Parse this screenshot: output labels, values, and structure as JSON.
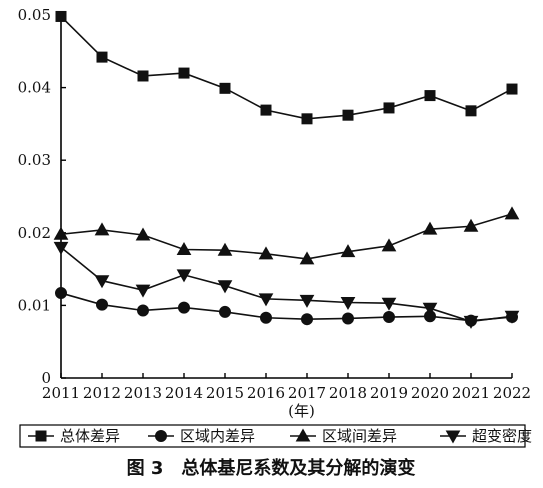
{
  "chart_data": {
    "type": "line",
    "title": "",
    "xlabel": "(年)",
    "ylabel": "",
    "x": [
      2011,
      2012,
      2013,
      2014,
      2015,
      2016,
      2017,
      2018,
      2019,
      2020,
      2021,
      2022
    ],
    "y_ticks": [
      "0",
      "0.01",
      "0.02",
      "0.03",
      "0.04",
      "0.05"
    ],
    "ylim": [
      0,
      0.05
    ],
    "grid": false,
    "legend_position": "bottom",
    "series": [
      {
        "name": "总体差异",
        "marker": "square",
        "values": [
          0.0498,
          0.0442,
          0.0416,
          0.042,
          0.0399,
          0.0369,
          0.0357,
          0.0362,
          0.0372,
          0.0389,
          0.0368,
          0.0398
        ]
      },
      {
        "name": "区域内差异",
        "marker": "circle",
        "values": [
          0.0117,
          0.0101,
          0.0093,
          0.0097,
          0.0091,
          0.0083,
          0.0081,
          0.0082,
          0.0084,
          0.0085,
          0.0079,
          0.0084
        ]
      },
      {
        "name": "区域间差异",
        "marker": "triangle-up",
        "values": [
          0.0198,
          0.0204,
          0.0197,
          0.0177,
          0.0176,
          0.0171,
          0.0164,
          0.0174,
          0.0182,
          0.0205,
          0.0209,
          0.0226
        ]
      },
      {
        "name": "超变密度",
        "marker": "triangle-down",
        "values": [
          0.018,
          0.0134,
          0.0121,
          0.0142,
          0.0127,
          0.0109,
          0.0107,
          0.0104,
          0.0103,
          0.0096,
          0.0078,
          0.0085
        ]
      }
    ],
    "caption": "图 3　总体基尼系数及其分解的演变"
  }
}
